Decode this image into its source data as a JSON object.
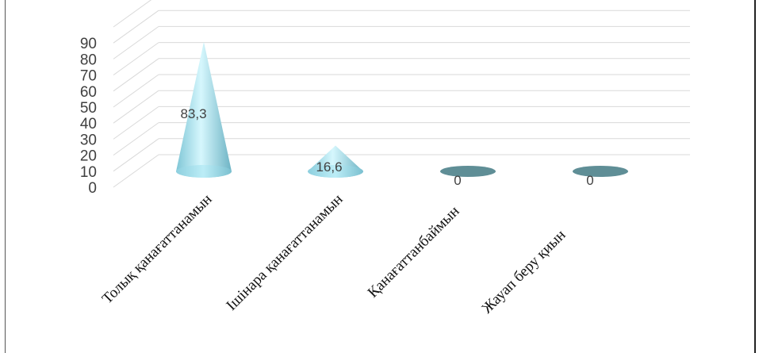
{
  "chart_data": {
    "type": "bar",
    "style": "3d-cone",
    "categories": [
      "Толық қанағаттанамын",
      "Ішінара қанағаттанамын",
      "Қанағаттанбаймын",
      "Жауап беру қиын"
    ],
    "values": [
      83.3,
      16.6,
      0,
      0
    ],
    "data_labels": [
      "83,3",
      "16,6",
      "0",
      "0"
    ],
    "y_ticks": [
      "0",
      "10",
      "20",
      "30",
      "40",
      "50",
      "60",
      "70",
      "80",
      "90"
    ],
    "ylim": [
      0,
      90
    ],
    "grid": true,
    "legend": "none",
    "title": "",
    "xlabel": "",
    "ylabel": ""
  },
  "colors": {
    "cone_light": "#c8f2fb",
    "cone_dark": "#6fb8c9",
    "zero_disc": "#5f8e96",
    "grid": "#d9d9d9",
    "text": "#404040"
  }
}
